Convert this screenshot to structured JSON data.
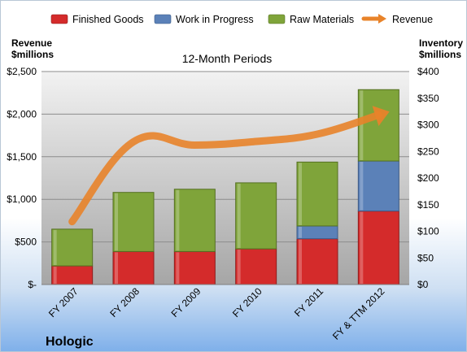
{
  "chart_data": {
    "type": "bar",
    "stacked": true,
    "company": "Hologic",
    "subtitle": "12-Month Periods",
    "left_axis": {
      "title_line1": "Revenue",
      "title_line2": "$millions",
      "range": [
        0,
        2500
      ],
      "ticks": [
        "$-",
        "$500",
        "$1,000",
        "$1,500",
        "$2,000",
        "$2,500"
      ]
    },
    "right_axis": {
      "title_line1": "Inventory",
      "title_line2": "$millions",
      "range": [
        0,
        400
      ],
      "ticks": [
        "$0",
        "$50",
        "$100",
        "$150",
        "$200",
        "$250",
        "$300",
        "$350",
        "$400"
      ]
    },
    "categories": [
      "FY 2007",
      "FY 2008",
      "FY 2009",
      "FY 2010",
      "FY 2011",
      "FY & TTM 2012"
    ],
    "series": [
      {
        "name": "Finished Goods",
        "axis": "right",
        "color": "#d42b2b",
        "values": [
          35,
          62,
          62,
          67,
          86,
          138
        ]
      },
      {
        "name": "Work in Progress",
        "axis": "right",
        "color": "#5b81b8",
        "values": [
          0,
          0,
          0,
          0,
          24,
          94
        ]
      },
      {
        "name": "Raw Materials",
        "axis": "right",
        "color": "#7fa43a",
        "values": [
          69,
          111,
          117,
          124,
          120,
          134
        ]
      },
      {
        "name": "Revenue",
        "axis": "left",
        "type": "line",
        "color": "#e8832a",
        "values": [
          738,
          1675,
          1637,
          1679,
          1765,
          1990
        ]
      }
    ],
    "legend_position": "top",
    "grid": true
  }
}
